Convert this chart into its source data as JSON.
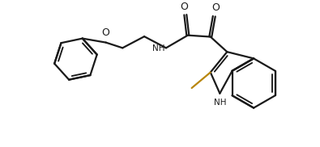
{
  "background_color": "#ffffff",
  "line_color": "#1a1a1a",
  "line_width": 1.6,
  "figsize": [
    3.95,
    1.82
  ],
  "dpi": 100,
  "methyl_color": "#b8860b",
  "xlim": [
    0,
    10
  ],
  "ylim": [
    0,
    4.6
  ]
}
